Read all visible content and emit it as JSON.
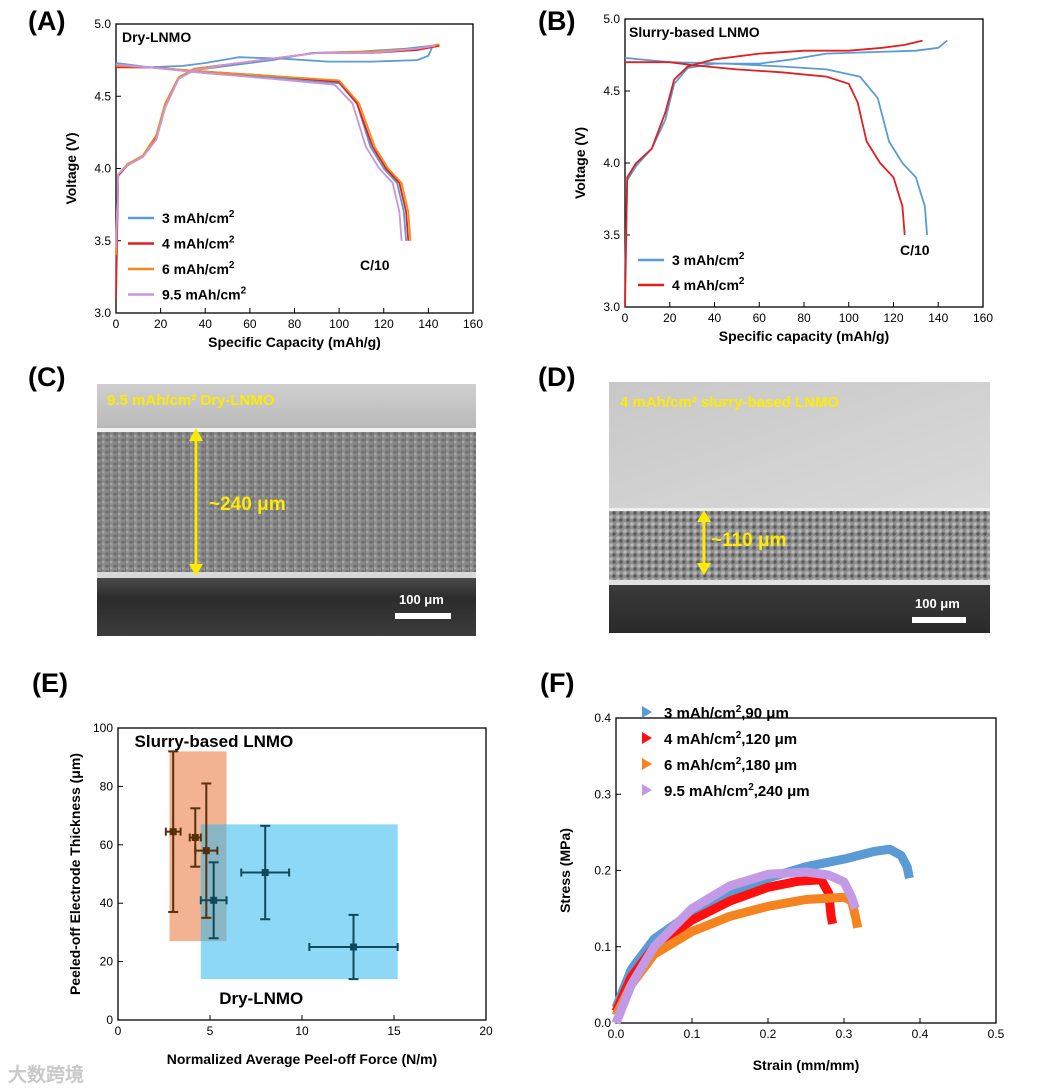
{
  "panels": {
    "a": "(A)",
    "b": "(B)",
    "c": "(C)",
    "d": "(D)",
    "e": "(E)",
    "f": "(F)"
  },
  "sem_c": {
    "title": "9.5 mAh/cm² Dry-LNMO",
    "thickness": "~240 μm",
    "scale": "100 μm"
  },
  "sem_d": {
    "title": "4 mAh/cm² slurry-based LNMO",
    "thickness": "~110 μm",
    "scale": "100 μm"
  },
  "watermark": "大数跨境",
  "chart_data": [
    {
      "id": "A",
      "type": "line",
      "title": "Dry-LNMO",
      "xlabel": "Specific Capacity (mAh/g)",
      "ylabel": "Voltage (V)",
      "xlim": [
        0,
        160
      ],
      "ylim": [
        3.0,
        5.0
      ],
      "xticks": [
        0,
        20,
        40,
        60,
        80,
        100,
        120,
        140,
        160
      ],
      "yticks": [
        3.0,
        3.5,
        4.0,
        4.5,
        5.0
      ],
      "annotation": "C/10",
      "legend_position": "bottom-left",
      "series": [
        {
          "name": "3 mAh/cm²",
          "color": "#5b9bd5",
          "charge": [
            [
              0,
              3.3
            ],
            [
              1,
              3.95
            ],
            [
              5,
              4.02
            ],
            [
              12,
              4.08
            ],
            [
              18,
              4.2
            ],
            [
              22,
              4.42
            ],
            [
              28,
              4.62
            ],
            [
              35,
              4.68
            ],
            [
              50,
              4.71
            ],
            [
              70,
              4.75
            ],
            [
              88,
              4.8
            ],
            [
              110,
              4.81
            ],
            [
              130,
              4.83
            ],
            [
              142,
              4.85
            ]
          ],
          "discharge": [
            [
              142,
              4.85
            ],
            [
              140,
              4.78
            ],
            [
              135,
              4.75
            ],
            [
              115,
              4.74
            ],
            [
              95,
              4.74
            ],
            [
              75,
              4.76
            ],
            [
              55,
              4.77
            ],
            [
              40,
              4.73
            ],
            [
              30,
              4.71
            ],
            [
              15,
              4.7
            ],
            [
              5,
              4.7
            ],
            [
              0,
              4.73
            ]
          ],
          "discharge2": [
            [
              0,
              4.73
            ],
            [
              15,
              4.7
            ],
            [
              40,
              4.66
            ],
            [
              70,
              4.63
            ],
            [
              100,
              4.59
            ],
            [
              108,
              4.45
            ],
            [
              114,
              4.15
            ],
            [
              120,
              4.0
            ],
            [
              126,
              3.9
            ],
            [
              129,
              3.7
            ],
            [
              130,
              3.5
            ]
          ]
        },
        {
          "name": "4 mAh/cm²",
          "color": "#e02020",
          "charge": [
            [
              0,
              3.1
            ],
            [
              1,
              3.95
            ],
            [
              5,
              4.02
            ],
            [
              12,
              4.08
            ],
            [
              18,
              4.22
            ],
            [
              22,
              4.44
            ],
            [
              28,
              4.63
            ],
            [
              35,
              4.69
            ],
            [
              50,
              4.72
            ],
            [
              70,
              4.76
            ],
            [
              90,
              4.8
            ],
            [
              115,
              4.8
            ],
            [
              135,
              4.82
            ],
            [
              145,
              4.85
            ]
          ],
          "discharge": [
            [
              0,
              4.7
            ],
            [
              15,
              4.7
            ],
            [
              40,
              4.67
            ],
            [
              70,
              4.64
            ],
            [
              100,
              4.6
            ],
            [
              108,
              4.45
            ],
            [
              115,
              4.15
            ],
            [
              121,
              4.0
            ],
            [
              127,
              3.9
            ],
            [
              130,
              3.7
            ],
            [
              131,
              3.5
            ]
          ]
        },
        {
          "name": "6 mAh/cm²",
          "color": "#f28c1f",
          "charge": [
            [
              0,
              3.4
            ],
            [
              1,
              3.96
            ],
            [
              5,
              4.03
            ],
            [
              12,
              4.09
            ],
            [
              18,
              4.23
            ],
            [
              22,
              4.45
            ],
            [
              28,
              4.63
            ],
            [
              35,
              4.69
            ],
            [
              50,
              4.72
            ],
            [
              70,
              4.76
            ],
            [
              90,
              4.8
            ],
            [
              115,
              4.81
            ],
            [
              135,
              4.83
            ],
            [
              145,
              4.86
            ]
          ],
          "discharge": [
            [
              0,
              4.71
            ],
            [
              15,
              4.7
            ],
            [
              40,
              4.67
            ],
            [
              70,
              4.64
            ],
            [
              100,
              4.61
            ],
            [
              109,
              4.45
            ],
            [
              116,
              4.15
            ],
            [
              122,
              4.0
            ],
            [
              128,
              3.9
            ],
            [
              131,
              3.7
            ],
            [
              132,
              3.5
            ]
          ]
        },
        {
          "name": "9.5 mAh/cm²",
          "color": "#c994e0",
          "charge": [
            [
              0,
              3.45
            ],
            [
              1,
              3.96
            ],
            [
              5,
              4.02
            ],
            [
              12,
              4.08
            ],
            [
              18,
              4.2
            ],
            [
              22,
              4.42
            ],
            [
              28,
              4.62
            ],
            [
              35,
              4.68
            ],
            [
              50,
              4.72
            ],
            [
              70,
              4.76
            ],
            [
              90,
              4.8
            ],
            [
              115,
              4.8
            ],
            [
              135,
              4.83
            ],
            [
              143,
              4.85
            ]
          ],
          "discharge": [
            [
              0,
              4.72
            ],
            [
              15,
              4.7
            ],
            [
              40,
              4.66
            ],
            [
              70,
              4.62
            ],
            [
              98,
              4.58
            ],
            [
              106,
              4.45
            ],
            [
              112,
              4.15
            ],
            [
              118,
              4.0
            ],
            [
              124,
              3.9
            ],
            [
              127,
              3.7
            ],
            [
              128,
              3.5
            ]
          ]
        }
      ]
    },
    {
      "id": "B",
      "type": "line",
      "title": "Slurry-based LNMO",
      "xlabel": "Specific capacity (mAh/g)",
      "ylabel": "Voltage (V)",
      "xlim": [
        0,
        160
      ],
      "ylim": [
        3.0,
        5.0
      ],
      "xticks": [
        0,
        20,
        40,
        60,
        80,
        100,
        120,
        140,
        160
      ],
      "yticks": [
        3.0,
        3.5,
        4.0,
        4.5,
        5.0
      ],
      "annotation": "C/10",
      "legend_position": "bottom-left",
      "series": [
        {
          "name": "3 mAh/cm²",
          "color": "#5b9bd5",
          "charge": [
            [
              0,
              3.2
            ],
            [
              1,
              3.88
            ],
            [
              5,
              3.98
            ],
            [
              12,
              4.1
            ],
            [
              18,
              4.3
            ],
            [
              22,
              4.55
            ],
            [
              28,
              4.66
            ],
            [
              40,
              4.69
            ],
            [
              60,
              4.69
            ],
            [
              75,
              4.72
            ],
            [
              90,
              4.76
            ],
            [
              110,
              4.77
            ],
            [
              130,
              4.78
            ],
            [
              140,
              4.8
            ],
            [
              144,
              4.85
            ]
          ],
          "discharge": [
            [
              0,
              4.73
            ],
            [
              20,
              4.7
            ],
            [
              45,
              4.69
            ],
            [
              70,
              4.67
            ],
            [
              90,
              4.65
            ],
            [
              105,
              4.6
            ],
            [
              113,
              4.45
            ],
            [
              118,
              4.15
            ],
            [
              124,
              4.0
            ],
            [
              130,
              3.9
            ],
            [
              134,
              3.7
            ],
            [
              135,
              3.5
            ]
          ]
        },
        {
          "name": "4 mAh/cm²",
          "color": "#e02020",
          "charge": [
            [
              0,
              3.0
            ],
            [
              1,
              3.9
            ],
            [
              5,
              4.0
            ],
            [
              12,
              4.1
            ],
            [
              18,
              4.35
            ],
            [
              22,
              4.58
            ],
            [
              28,
              4.67
            ],
            [
              40,
              4.72
            ],
            [
              60,
              4.76
            ],
            [
              80,
              4.78
            ],
            [
              100,
              4.78
            ],
            [
              115,
              4.8
            ],
            [
              125,
              4.82
            ],
            [
              133,
              4.85
            ]
          ],
          "discharge": [
            [
              0,
              4.7
            ],
            [
              20,
              4.7
            ],
            [
              30,
              4.68
            ],
            [
              50,
              4.65
            ],
            [
              70,
              4.63
            ],
            [
              90,
              4.6
            ],
            [
              100,
              4.55
            ],
            [
              104,
              4.42
            ],
            [
              108,
              4.15
            ],
            [
              114,
              4.0
            ],
            [
              120,
              3.9
            ],
            [
              124,
              3.7
            ],
            [
              125,
              3.5
            ]
          ]
        }
      ]
    },
    {
      "id": "E",
      "type": "scatter",
      "xlabel": "Normalized Average Peel-off Force (N/m)",
      "ylabel": "Peeled-off Electrode Thickness (μm)",
      "xlim": [
        0,
        20
      ],
      "ylim": [
        0,
        100
      ],
      "xticks": [
        0,
        5,
        10,
        15,
        20
      ],
      "yticks": [
        0,
        20,
        40,
        60,
        80,
        100
      ],
      "regions": [
        {
          "label": "Slurry-based LNMO",
          "color": "#f0a078",
          "x": [
            2.8,
            5.9
          ],
          "y": [
            27,
            92
          ]
        },
        {
          "label": "Dry-LNMO",
          "color": "#2fb8ec",
          "x": [
            4.5,
            15.2
          ],
          "y": [
            14,
            67
          ]
        }
      ],
      "series": [
        {
          "name": "Slurry-based LNMO",
          "color": "#5a2d0c",
          "points": [
            {
              "x": 3.0,
              "y": 64.5,
              "xerr": 0.4,
              "yerr": 27.5
            },
            {
              "x": 4.2,
              "y": 62.5,
              "xerr": 0.3,
              "yerr": 10
            },
            {
              "x": 4.8,
              "y": 58,
              "xerr": 0.6,
              "yerr": 23
            }
          ]
        },
        {
          "name": "Dry-LNMO",
          "color": "#0e4a5c",
          "points": [
            {
              "x": 5.2,
              "y": 41,
              "xerr": 0.7,
              "yerr": 13
            },
            {
              "x": 8.0,
              "y": 50.5,
              "xerr": 1.3,
              "yerr": 16
            },
            {
              "x": 12.8,
              "y": 25,
              "xerr": 2.4,
              "yerr": 11
            }
          ]
        }
      ]
    },
    {
      "id": "F",
      "type": "line",
      "xlabel": "Strain (mm/mm)",
      "ylabel": "Stress (MPa)",
      "xlim": [
        0,
        0.5
      ],
      "ylim": [
        0,
        0.4
      ],
      "xticks": [
        0.0,
        0.1,
        0.2,
        0.3,
        0.4,
        0.5
      ],
      "yticks": [
        0.0,
        0.1,
        0.2,
        0.3,
        0.4
      ],
      "legend_position": "top-left",
      "series": [
        {
          "name": "3 mAh/cm²,90 μm",
          "color": "#5b9bd5",
          "points": [
            [
              0,
              0.02
            ],
            [
              0.02,
              0.07
            ],
            [
              0.05,
              0.11
            ],
            [
              0.1,
              0.145
            ],
            [
              0.15,
              0.17
            ],
            [
              0.2,
              0.19
            ],
            [
              0.25,
              0.205
            ],
            [
              0.3,
              0.215
            ],
            [
              0.34,
              0.225
            ],
            [
              0.36,
              0.228
            ],
            [
              0.375,
              0.22
            ],
            [
              0.383,
              0.205
            ],
            [
              0.386,
              0.19
            ]
          ]
        },
        {
          "name": "4 mAh/cm²,120 μm",
          "color": "#ff1010",
          "points": [
            [
              0,
              0.015
            ],
            [
              0.02,
              0.06
            ],
            [
              0.05,
              0.1
            ],
            [
              0.1,
              0.135
            ],
            [
              0.15,
              0.16
            ],
            [
              0.2,
              0.178
            ],
            [
              0.24,
              0.186
            ],
            [
              0.27,
              0.188
            ],
            [
              0.28,
              0.17
            ],
            [
              0.283,
              0.14
            ],
            [
              0.285,
              0.13
            ]
          ]
        },
        {
          "name": "6 mAh/cm²,180 μm",
          "color": "#f5831f",
          "points": [
            [
              0,
              0.01
            ],
            [
              0.02,
              0.05
            ],
            [
              0.05,
              0.09
            ],
            [
              0.1,
              0.12
            ],
            [
              0.15,
              0.14
            ],
            [
              0.2,
              0.153
            ],
            [
              0.25,
              0.162
            ],
            [
              0.3,
              0.165
            ],
            [
              0.31,
              0.16
            ],
            [
              0.315,
              0.14
            ],
            [
              0.318,
              0.125
            ]
          ]
        },
        {
          "name": "9.5 mAh/cm²,240 μm",
          "color": "#c39ae6",
          "points": [
            [
              0,
              0.0
            ],
            [
              0.02,
              0.05
            ],
            [
              0.05,
              0.1
            ],
            [
              0.1,
              0.15
            ],
            [
              0.15,
              0.18
            ],
            [
              0.2,
              0.195
            ],
            [
              0.25,
              0.198
            ],
            [
              0.28,
              0.194
            ],
            [
              0.3,
              0.185
            ],
            [
              0.31,
              0.165
            ],
            [
              0.315,
              0.15
            ]
          ]
        }
      ]
    }
  ]
}
